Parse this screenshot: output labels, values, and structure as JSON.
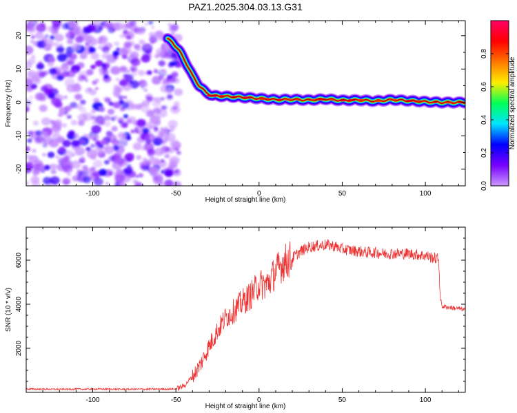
{
  "figure_title": "PAZ1.2025.304.03.13.G31",
  "chart_data": [
    {
      "type": "heatmap",
      "title": "PAZ1.2025.304.03.13.G31",
      "xlabel": "Height of straight line (km)",
      "ylabel": "Frequency (Hz)",
      "xlim": [
        -140,
        124
      ],
      "ylim": [
        -25,
        24.5
      ],
      "xticks": [
        -100,
        -50,
        0,
        50,
        100
      ],
      "yticks": [
        -20,
        -10,
        0,
        10,
        20
      ],
      "colorbar": {
        "label": "Normalized spectral amplitude",
        "range": [
          0,
          1
        ],
        "ticks": [
          0.0,
          0.2,
          0.4,
          0.6,
          0.8
        ],
        "colormap": [
          "#cc99ff",
          "#7700ff",
          "#0000ff",
          "#00e5ff",
          "#00ff55",
          "#ffee00",
          "#ff7700",
          "#ff0000",
          "#ff0066"
        ]
      },
      "noise_region": {
        "x_range": [
          -140,
          -50
        ],
        "amplitude": "low (0.0-0.25)"
      },
      "ridge_line": {
        "x": [
          -55,
          -52,
          -48,
          -44,
          -40,
          -36,
          -32,
          -28,
          -20,
          -10,
          0,
          10,
          20,
          30,
          40,
          50,
          60,
          70,
          80,
          90,
          100,
          110,
          124
        ],
        "frequency": [
          19,
          18,
          15.5,
          12,
          8,
          5,
          3,
          2,
          1.8,
          1.5,
          1.2,
          0.8,
          0.9,
          0.7,
          1.0,
          0.6,
          0.7,
          0.4,
          0.8,
          0.5,
          0.2,
          0.0,
          0.0
        ],
        "peak_amplitude": 0.95
      }
    },
    {
      "type": "line",
      "xlabel": "Height of straight line (km)",
      "ylabel": "SNR (10 * v/v)",
      "xlim": [
        -140,
        124
      ],
      "ylim": [
        0,
        7500
      ],
      "xticks": [
        -100,
        -50,
        0,
        50,
        100
      ],
      "yticks": [
        2000,
        4000,
        6000
      ],
      "series": [
        {
          "name": "SNR",
          "color": "#ee3333",
          "x": [
            -140,
            -120,
            -100,
            -80,
            -60,
            -50,
            -45,
            -42,
            -40,
            -35,
            -30,
            -25,
            -20,
            -15,
            -10,
            -5,
            0,
            5,
            10,
            15,
            20,
            25,
            30,
            35,
            40,
            45,
            50,
            55,
            60,
            65,
            70,
            75,
            80,
            85,
            90,
            95,
            100,
            105,
            108,
            109,
            110,
            115,
            120,
            124
          ],
          "values": [
            150,
            140,
            150,
            140,
            150,
            150,
            300,
            550,
            700,
            1300,
            2100,
            2800,
            3400,
            3700,
            4100,
            4400,
            4900,
            4900,
            5500,
            5900,
            6100,
            6400,
            6600,
            6650,
            6700,
            6650,
            6500,
            6450,
            6400,
            6350,
            6350,
            6300,
            6300,
            6300,
            6300,
            6250,
            6200,
            6100,
            6050,
            4300,
            3900,
            3850,
            3800,
            3750
          ]
        }
      ]
    }
  ]
}
